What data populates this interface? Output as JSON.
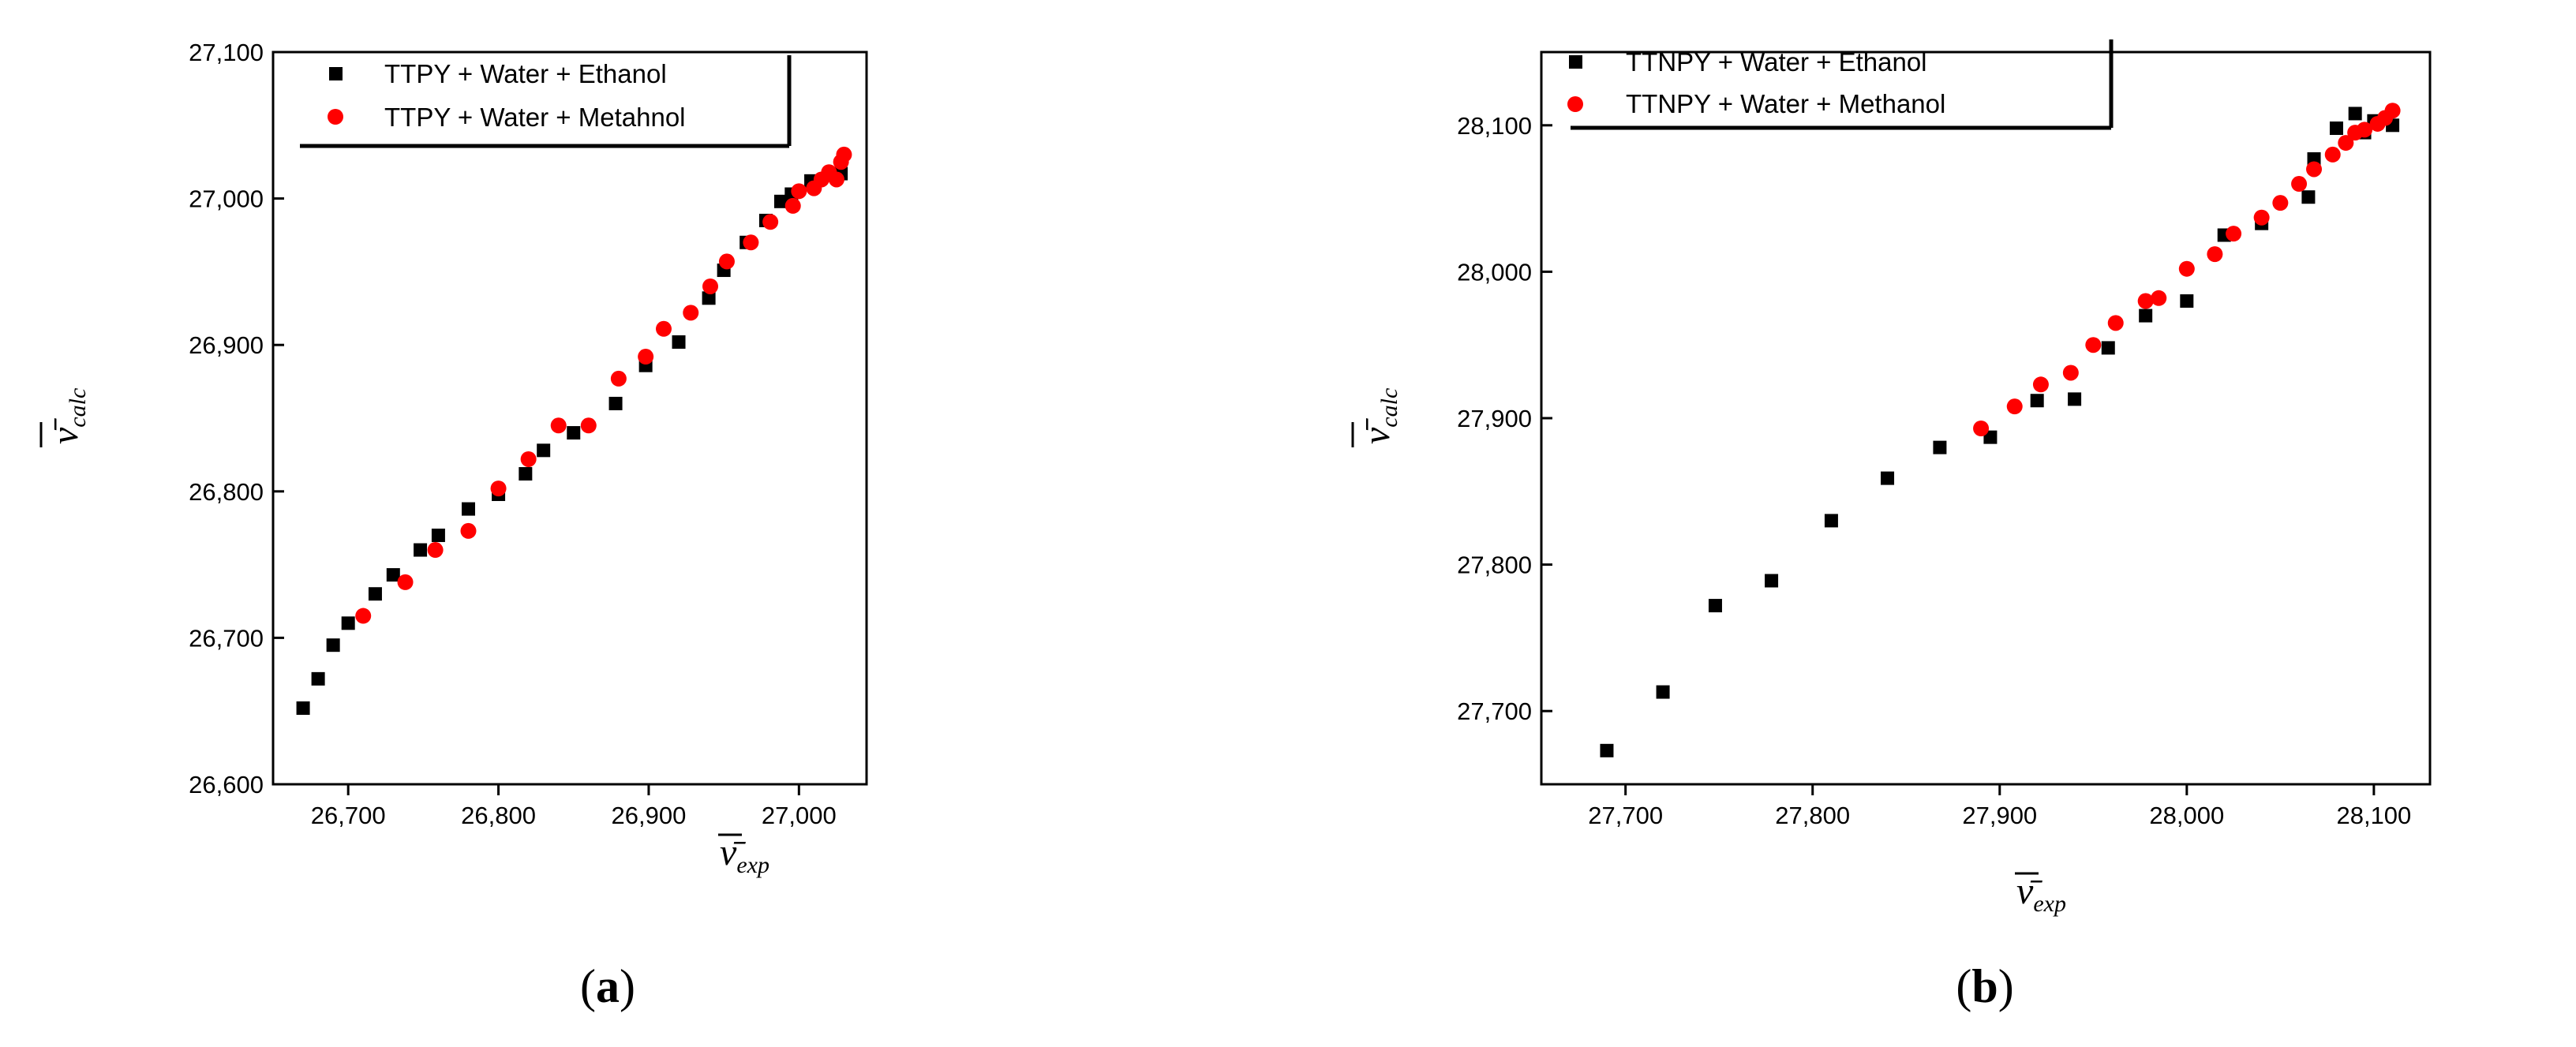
{
  "chart_data": [
    {
      "type": "scatter",
      "panel_label": "a",
      "xlabel": "ν̄",
      "xlabel_sub": "exp",
      "ylabel": "ν̄",
      "ylabel_sub": "calc",
      "xlim": [
        26650,
        27045
      ],
      "ylim": [
        26600,
        27100
      ],
      "xticks": [
        26700,
        26800,
        26900,
        27000
      ],
      "xtick_labels": [
        "26,700",
        "26,800",
        "26,900",
        "27,000"
      ],
      "yticks": [
        26600,
        26700,
        26800,
        26900,
        27000,
        27100
      ],
      "ytick_labels": [
        "26,600",
        "26,700",
        "26,800",
        "26,900",
        "27,000",
        "27,100"
      ],
      "legend_position": "top-left",
      "series": [
        {
          "name": "TTPY + Water + Ethanol",
          "marker": "square",
          "color": "#000000",
          "x": [
            26670,
            26680,
            26690,
            26700,
            26718,
            26730,
            26748,
            26760,
            26780,
            26800,
            26818,
            26830,
            26850,
            26878,
            26898,
            26920,
            26940,
            26950,
            26965,
            26978,
            26988,
            26995,
            27008,
            27028
          ],
          "y": [
            26652,
            26672,
            26695,
            26710,
            26730,
            26743,
            26760,
            26770,
            26788,
            26798,
            26812,
            26828,
            26840,
            26860,
            26886,
            26902,
            26932,
            26951,
            26970,
            26985,
            26998,
            27003,
            27012,
            27017
          ]
        },
        {
          "name": "TTPY + Water + Metahnol",
          "marker": "circle",
          "color": "#ff0000",
          "x": [
            26710,
            26738,
            26758,
            26780,
            26800,
            26820,
            26840,
            26860,
            26880,
            26898,
            26910,
            26928,
            26941,
            26952,
            26968,
            26981,
            26996,
            27000,
            27010,
            27015,
            27020,
            27025,
            27028,
            27030
          ],
          "y": [
            26715,
            26738,
            26760,
            26773,
            26802,
            26822,
            26845,
            26845,
            26877,
            26892,
            26911,
            26922,
            26940,
            26957,
            26970,
            26984,
            26995,
            27005,
            27007,
            27013,
            27018,
            27013,
            27025,
            27030
          ]
        }
      ]
    },
    {
      "type": "scatter",
      "panel_label": "b",
      "xlabel": "ν̄",
      "xlabel_sub": "exp",
      "ylabel": "ν̄",
      "ylabel_sub": "calc",
      "xlim": [
        27655,
        28130
      ],
      "ylim": [
        27650,
        28150
      ],
      "xticks": [
        27700,
        27800,
        27900,
        28000,
        28100
      ],
      "xtick_labels": [
        "27,700",
        "27,800",
        "27,900",
        "28,000",
        "28,100"
      ],
      "yticks": [
        27700,
        27800,
        27900,
        28000,
        28100
      ],
      "ytick_labels": [
        "27,700",
        "27,800",
        "27,900",
        "28,000",
        "28,100"
      ],
      "legend_position": "top-left",
      "series": [
        {
          "name": "TTNPY + Water + Ethanol",
          "marker": "square",
          "color": "#000000",
          "x": [
            27690,
            27720,
            27748,
            27778,
            27810,
            27840,
            27868,
            27895,
            27920,
            27940,
            27958,
            27978,
            28000,
            28020,
            28040,
            28065,
            28068,
            28080,
            28090,
            28095,
            28100,
            28110
          ],
          "y": [
            27673,
            27713,
            27772,
            27789,
            27830,
            27859,
            27880,
            27887,
            27912,
            27913,
            27948,
            27970,
            27980,
            28025,
            28033,
            28051,
            28077,
            28098,
            28108,
            28095,
            28103,
            28100
          ]
        },
        {
          "name": "TTNPY + Water + Methanol",
          "marker": "circle",
          "color": "#ff0000",
          "x": [
            27890,
            27908,
            27922,
            27938,
            27950,
            27962,
            27978,
            27985,
            28000,
            28015,
            28025,
            28040,
            28050,
            28060,
            28068,
            28078,
            28085,
            28090,
            28095,
            28102,
            28106,
            28110
          ],
          "y": [
            27893,
            27908,
            27923,
            27931,
            27950,
            27965,
            27980,
            27982,
            28002,
            28012,
            28026,
            28037,
            28047,
            28060,
            28070,
            28080,
            28088,
            28095,
            28097,
            28101,
            28105,
            28110
          ]
        }
      ]
    }
  ]
}
